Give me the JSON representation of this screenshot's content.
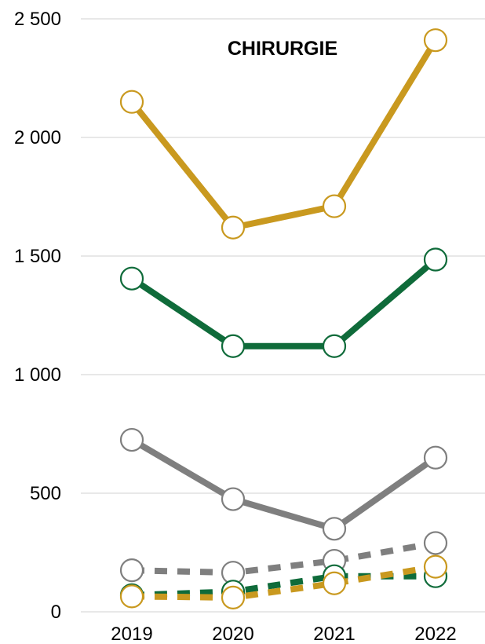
{
  "chart_data": {
    "type": "line",
    "title": "CHIRURGIE",
    "xlabel": "",
    "ylabel": "",
    "categories": [
      "2019",
      "2020",
      "2021",
      "2022"
    ],
    "ylim": [
      0,
      2500
    ],
    "yticks": [
      0,
      500,
      1000,
      1500,
      2000,
      2500
    ],
    "ytick_labels": [
      "0",
      "500",
      "1 000",
      "1 500",
      "2 000",
      "2 500"
    ],
    "grid": true,
    "legend": "none",
    "series": [
      {
        "color": "#c9991f",
        "style": "solid",
        "values": [
          2150,
          1620,
          1710,
          2410
        ]
      },
      {
        "color": "#0f6b3a",
        "style": "solid",
        "values": [
          1405,
          1120,
          1120,
          1485
        ]
      },
      {
        "color": "#7f7f7f",
        "style": "solid",
        "values": [
          725,
          475,
          350,
          650
        ]
      },
      {
        "color": "#7f7f7f",
        "style": "dashed",
        "values": [
          175,
          165,
          215,
          290
        ]
      },
      {
        "color": "#0f6b3a",
        "style": "dashed",
        "values": [
          70,
          85,
          150,
          150
        ]
      },
      {
        "color": "#c9991f",
        "style": "dashed",
        "values": [
          65,
          60,
          120,
          190
        ]
      }
    ]
  }
}
